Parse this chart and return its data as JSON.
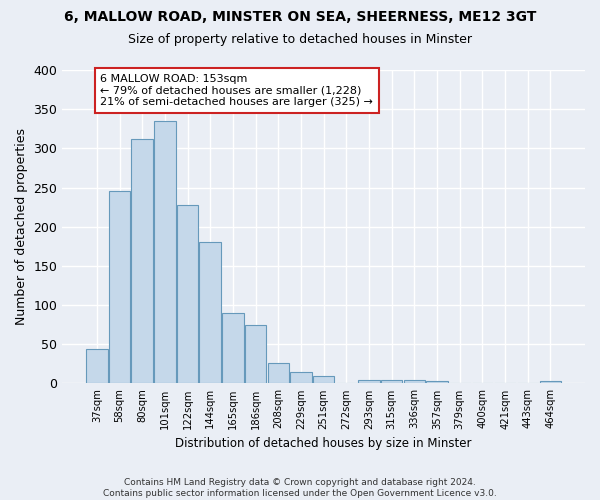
{
  "title_line1": "6, MALLOW ROAD, MINSTER ON SEA, SHEERNESS, ME12 3GT",
  "title_line2": "Size of property relative to detached houses in Minster",
  "xlabel": "Distribution of detached houses by size in Minster",
  "ylabel": "Number of detached properties",
  "bar_color": "#c5d8ea",
  "bar_edge_color": "#6699bb",
  "categories": [
    "37sqm",
    "58sqm",
    "80sqm",
    "101sqm",
    "122sqm",
    "144sqm",
    "165sqm",
    "186sqm",
    "208sqm",
    "229sqm",
    "251sqm",
    "272sqm",
    "293sqm",
    "315sqm",
    "336sqm",
    "357sqm",
    "379sqm",
    "400sqm",
    "421sqm",
    "443sqm",
    "464sqm"
  ],
  "values": [
    44,
    246,
    312,
    335,
    228,
    180,
    90,
    75,
    26,
    15,
    10,
    0,
    4,
    5,
    4,
    3,
    0,
    0,
    0,
    0,
    3
  ],
  "ylim": [
    0,
    400
  ],
  "yticks": [
    0,
    50,
    100,
    150,
    200,
    250,
    300,
    350,
    400
  ],
  "annotation_text": "6 MALLOW ROAD: 153sqm\n← 79% of detached houses are smaller (1,228)\n21% of semi-detached houses are larger (325) →",
  "annotation_bar_index": 3,
  "bg_color": "#eaeef5",
  "plot_bg_color": "#eaeef5",
  "grid_color": "#ffffff",
  "footnote": "Contains HM Land Registry data © Crown copyright and database right 2024.\nContains public sector information licensed under the Open Government Licence v3.0."
}
